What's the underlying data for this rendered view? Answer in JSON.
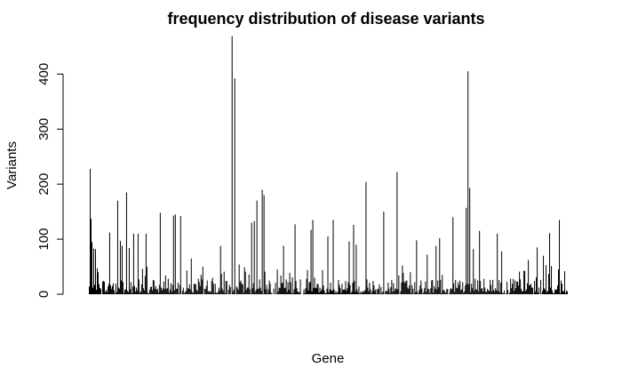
{
  "chart_data": {
    "type": "bar",
    "title": "frequency distribution of disease variants",
    "xlabel": "Gene",
    "ylabel": "Variants",
    "ylim": [
      0,
      470
    ],
    "yticks": [
      0,
      100,
      200,
      300,
      400
    ],
    "grid": false,
    "legend": "none",
    "bar_color": "#000000",
    "n_genes": 540,
    "highlights": [
      [
        1,
        228
      ],
      [
        2,
        137
      ],
      [
        3,
        95
      ],
      [
        5,
        83
      ],
      [
        7,
        82
      ],
      [
        10,
        40
      ],
      [
        23,
        112
      ],
      [
        32,
        170
      ],
      [
        35,
        97
      ],
      [
        37,
        88
      ],
      [
        42,
        185
      ],
      [
        45,
        84
      ],
      [
        50,
        110
      ],
      [
        55,
        110
      ],
      [
        64,
        110
      ],
      [
        80,
        148
      ],
      [
        95,
        143
      ],
      [
        97,
        145
      ],
      [
        103,
        142
      ],
      [
        115,
        65
      ],
      [
        148,
        88
      ],
      [
        161,
        469
      ],
      [
        164,
        392
      ],
      [
        183,
        130
      ],
      [
        186,
        133
      ],
      [
        189,
        170
      ],
      [
        195,
        190
      ],
      [
        197,
        180
      ],
      [
        219,
        88
      ],
      [
        232,
        127
      ],
      [
        250,
        117
      ],
      [
        252,
        135
      ],
      [
        269,
        105
      ],
      [
        275,
        135
      ],
      [
        293,
        96
      ],
      [
        298,
        126
      ],
      [
        301,
        90
      ],
      [
        312,
        204
      ],
      [
        332,
        150
      ],
      [
        347,
        222
      ],
      [
        369,
        98
      ],
      [
        381,
        72
      ],
      [
        391,
        88
      ],
      [
        395,
        102
      ],
      [
        410,
        140
      ],
      [
        425,
        157
      ],
      [
        427,
        405
      ],
      [
        429,
        193
      ],
      [
        433,
        82
      ],
      [
        440,
        115
      ],
      [
        460,
        110
      ],
      [
        465,
        78
      ],
      [
        495,
        62
      ],
      [
        505,
        85
      ],
      [
        512,
        70
      ],
      [
        519,
        111
      ],
      [
        530,
        135
      ],
      [
        536,
        42
      ]
    ]
  }
}
